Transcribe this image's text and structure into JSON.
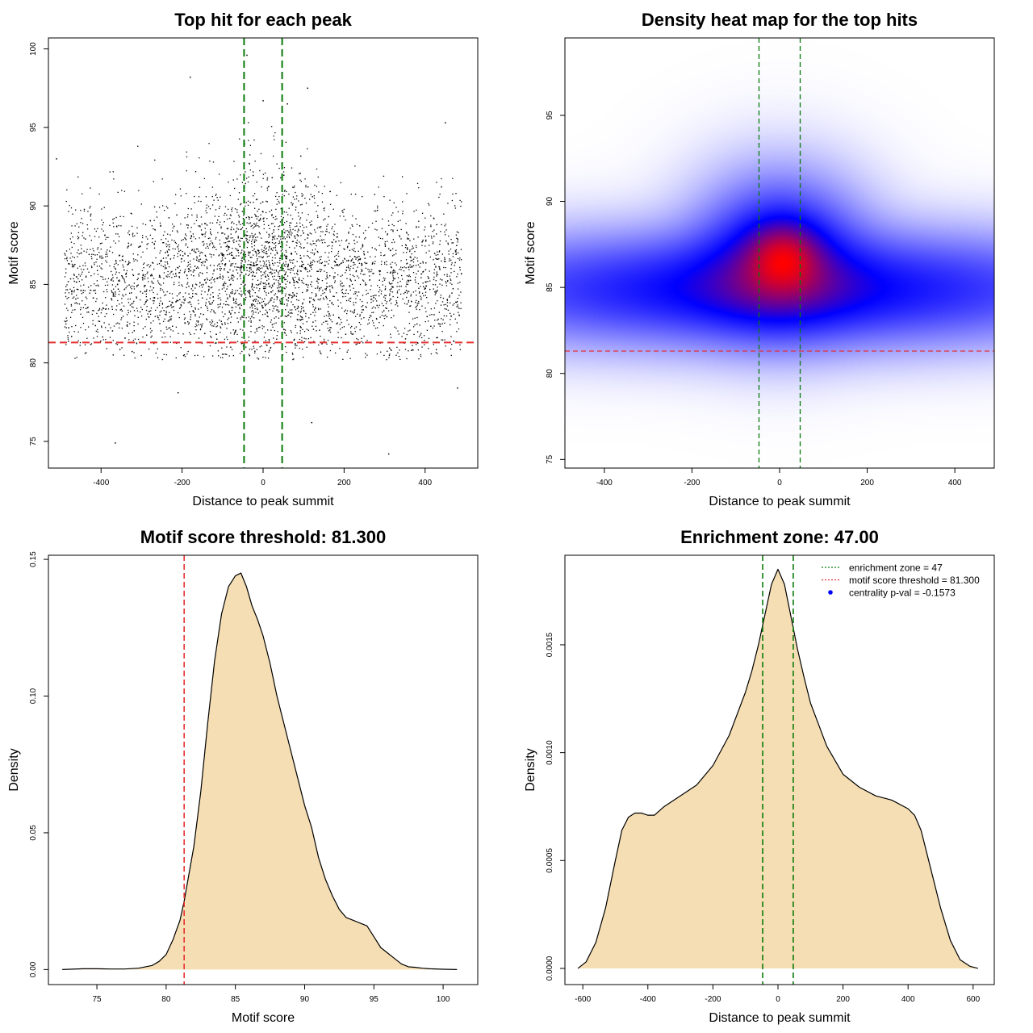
{
  "chart_data": [
    {
      "id": "scatter",
      "type": "scatter",
      "title": "Top hit for each peak",
      "xlabel": "Distance to peak summit",
      "ylabel": "Motif score",
      "xlim": [
        -530,
        530
      ],
      "ylim": [
        73.3,
        100.7
      ],
      "xticks": [
        -400,
        -200,
        0,
        200,
        400
      ],
      "xtick_labels": [
        "-400",
        "-200",
        "0",
        "200",
        "400"
      ],
      "yticks": [
        75,
        80,
        85,
        90,
        95,
        100
      ],
      "ytick_labels": [
        "75",
        "80",
        "85",
        "90",
        "95",
        "100"
      ],
      "hlines": [
        {
          "y": 81.3,
          "color": "#e53030",
          "style": "dashed"
        }
      ],
      "vlines": [
        {
          "x": -47,
          "color": "#0a7a0a",
          "style": "dashed"
        },
        {
          "x": 47,
          "color": "#0a7a0a",
          "style": "dashed"
        }
      ],
      "point_color": "#000000",
      "n_points": 4200,
      "distribution": {
        "x_range": [
          -490,
          490
        ],
        "background_score_mean": 85.2,
        "background_score_sd": 2.4,
        "central_score_mean": 87.0,
        "central_score_sd": 2.8,
        "central_x_sd": 90
      },
      "sample_points": [
        {
          "x": -510,
          "y": 93.0
        },
        {
          "x": -40,
          "y": 99.6
        },
        {
          "x": 110,
          "y": 97.5
        },
        {
          "x": -180,
          "y": 98.2
        },
        {
          "x": 480,
          "y": 78.4
        },
        {
          "x": -365,
          "y": 74.9
        },
        {
          "x": 310,
          "y": 74.2
        },
        {
          "x": 120,
          "y": 76.2
        },
        {
          "x": -210,
          "y": 78.1
        },
        {
          "x": 60,
          "y": 96.5
        },
        {
          "x": 0,
          "y": 96.7
        },
        {
          "x": 450,
          "y": 95.3
        }
      ]
    },
    {
      "id": "heatmap",
      "type": "heatmap",
      "title": "Density heat map for the top hits",
      "xlabel": "Distance to peak summit",
      "ylabel": "Motif score",
      "xlim": [
        -490,
        490
      ],
      "ylim": [
        74.5,
        99.5
      ],
      "xticks": [
        -400,
        -200,
        0,
        200,
        400
      ],
      "xtick_labels": [
        "-400",
        "-200",
        "0",
        "200",
        "400"
      ],
      "yticks": [
        75,
        80,
        85,
        90,
        95
      ],
      "ytick_labels": [
        "75",
        "80",
        "85",
        "90",
        "95"
      ],
      "hlines": [
        {
          "y": 81.3,
          "color": "#e53030",
          "style": "dashed"
        }
      ],
      "vlines": [
        {
          "x": -47,
          "color": "#0a7a0a",
          "style": "dashed"
        },
        {
          "x": 47,
          "color": "#0a7a0a",
          "style": "dashed"
        }
      ],
      "colormap": [
        "#ffffff",
        "#0000ff",
        "#ff0000"
      ],
      "density_components": [
        {
          "x": 0,
          "y": 84.9,
          "sx": 460,
          "sy": 1.9,
          "w": 0.55
        },
        {
          "x": 0,
          "y": 87.0,
          "sx": 110,
          "sy": 2.6,
          "w": 0.5
        },
        {
          "x": 10,
          "y": 86.9,
          "sx": 55,
          "sy": 1.3,
          "w": 0.45
        }
      ]
    },
    {
      "id": "score-density",
      "type": "area",
      "title": "Motif score threshold: 81.300",
      "xlabel": "Motif score",
      "ylabel": "Density",
      "xlim": [
        71.5,
        102.5
      ],
      "ylim": [
        -0.0055,
        0.1515
      ],
      "xticks": [
        75,
        80,
        85,
        90,
        95,
        100
      ],
      "xtick_labels": [
        "75",
        "80",
        "85",
        "90",
        "95",
        "100"
      ],
      "yticks": [
        0.0,
        0.05,
        0.1,
        0.15
      ],
      "ytick_labels": [
        "0.00",
        "0.05",
        "0.10",
        "0.15"
      ],
      "fill_color": "#f5deb3",
      "vlines": [
        {
          "x": 81.3,
          "color": "#e53030",
          "style": "dashed"
        }
      ],
      "x": [
        72.5,
        74,
        75,
        76,
        77,
        78,
        79,
        79.5,
        80,
        80.5,
        81,
        81.3,
        82,
        82.5,
        83,
        83.5,
        84,
        84.5,
        85,
        85.4,
        85.8,
        86.2,
        86.6,
        87,
        87.5,
        88,
        88.5,
        89,
        89.5,
        90,
        90.5,
        91,
        91.5,
        92,
        92.5,
        93,
        93.5,
        94,
        94.5,
        95,
        95.5,
        96,
        96.5,
        97,
        97.5,
        98,
        98.5,
        99,
        100,
        101
      ],
      "y": [
        0.0,
        0.0003,
        0.0003,
        0.0002,
        0.0002,
        0.0005,
        0.0015,
        0.003,
        0.0055,
        0.011,
        0.018,
        0.025,
        0.045,
        0.065,
        0.09,
        0.113,
        0.13,
        0.14,
        0.144,
        0.145,
        0.14,
        0.133,
        0.128,
        0.122,
        0.112,
        0.1,
        0.09,
        0.08,
        0.07,
        0.06,
        0.052,
        0.041,
        0.033,
        0.027,
        0.022,
        0.019,
        0.018,
        0.017,
        0.016,
        0.012,
        0.008,
        0.006,
        0.004,
        0.002,
        0.001,
        0.0008,
        0.0005,
        0.0003,
        0.0001,
        0.0
      ]
    },
    {
      "id": "distance-density",
      "type": "area",
      "title": "Enrichment zone: 47.00",
      "xlabel": "Distance to peak summit",
      "ylabel": "Density",
      "xlim": [
        -655,
        665
      ],
      "ylim": [
        -7.5e-05,
        0.001915
      ],
      "xticks": [
        -600,
        -400,
        -200,
        0,
        200,
        400,
        600
      ],
      "xtick_labels": [
        "-600",
        "-400",
        "-200",
        "0",
        "200",
        "400",
        "600"
      ],
      "yticks": [
        0.0,
        0.0005,
        0.001,
        0.0015
      ],
      "ytick_labels": [
        "0.0000",
        "0.0005",
        "0.0010",
        "0.0015"
      ],
      "fill_color": "#f5deb3",
      "vlines": [
        {
          "x": -47,
          "color": "#0a7a0a",
          "style": "dashed"
        },
        {
          "x": 47,
          "color": "#0a7a0a",
          "style": "dashed"
        }
      ],
      "x": [
        -615,
        -590,
        -560,
        -530,
        -500,
        -480,
        -460,
        -440,
        -420,
        -400,
        -380,
        -350,
        -300,
        -250,
        -200,
        -150,
        -100,
        -80,
        -60,
        -40,
        -20,
        0,
        20,
        40,
        60,
        80,
        100,
        150,
        200,
        250,
        300,
        350,
        400,
        420,
        440,
        460,
        480,
        500,
        530,
        560,
        590,
        615
      ],
      "y": [
        0.0,
        3e-05,
        0.00012,
        0.00028,
        0.0005,
        0.00064,
        0.0007,
        0.00072,
        0.00072,
        0.00071,
        0.00071,
        0.00075,
        0.0008,
        0.00085,
        0.00094,
        0.00108,
        0.00128,
        0.00138,
        0.0015,
        0.00164,
        0.00178,
        0.00185,
        0.00178,
        0.00163,
        0.00148,
        0.00135,
        0.00123,
        0.00103,
        0.0009,
        0.00084,
        0.0008,
        0.00078,
        0.00074,
        0.00071,
        0.00064,
        0.00052,
        0.0004,
        0.00028,
        0.00013,
        4e-05,
        1e-05,
        0.0
      ],
      "legend": [
        {
          "label": "enrichment zone = 47",
          "color": "#0a7a0a",
          "kind": "dotted-line"
        },
        {
          "label": "motif score threshold = 81.300",
          "color": "#e53030",
          "kind": "dotted-line"
        },
        {
          "label": "centrality p-val = -0.1573",
          "color": "#0000ff",
          "kind": "point"
        }
      ]
    }
  ]
}
